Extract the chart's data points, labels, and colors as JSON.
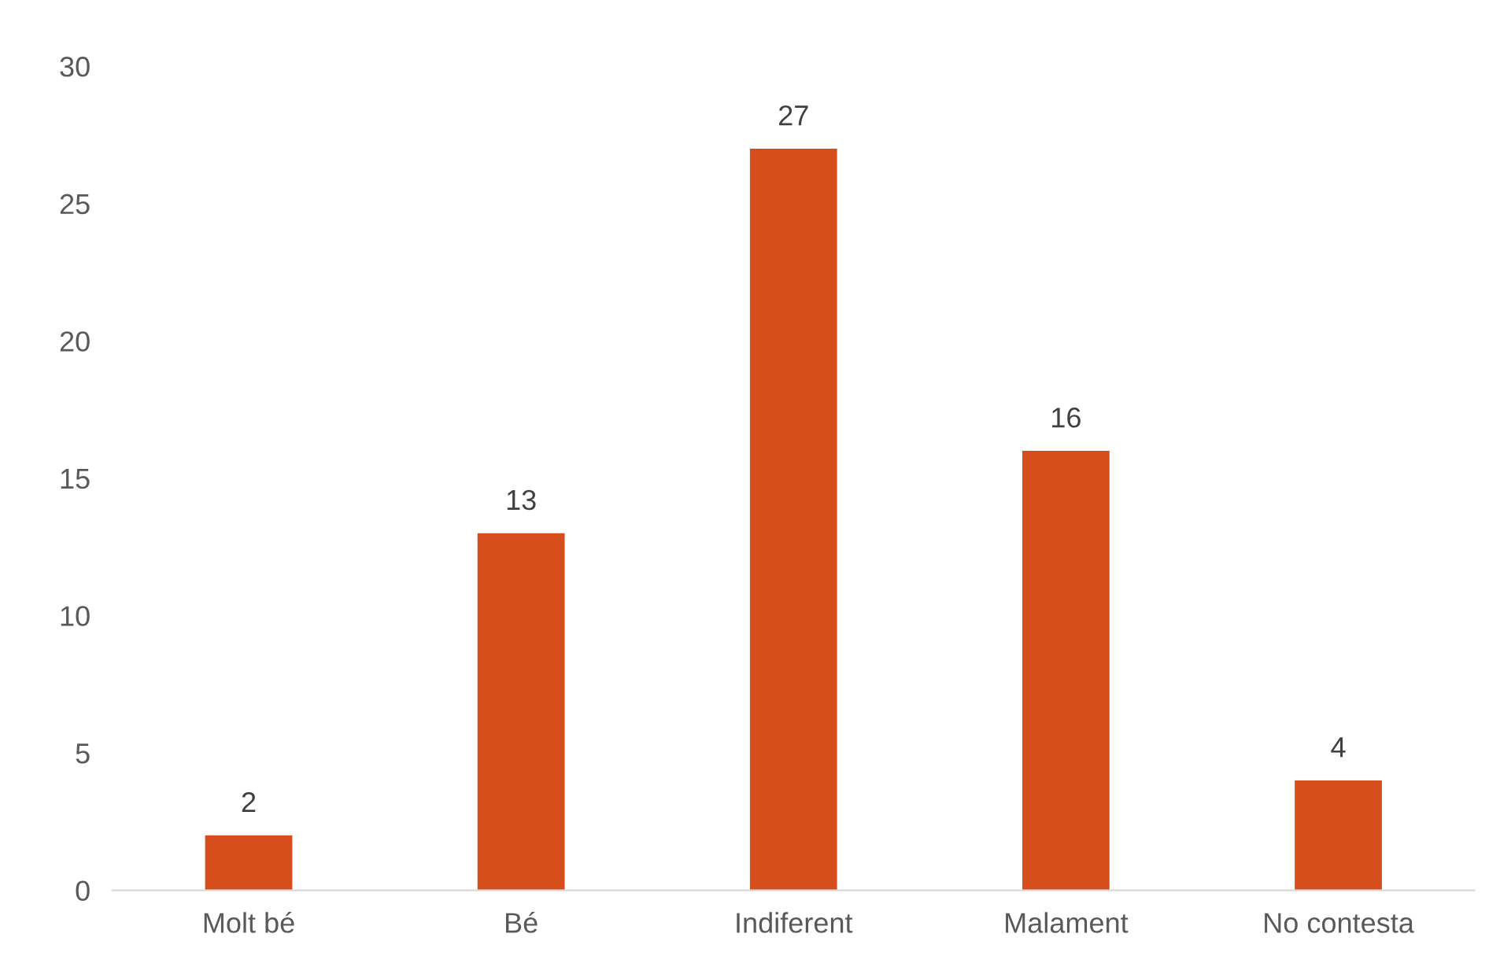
{
  "chart_data": {
    "type": "bar",
    "categories": [
      "Molt bé",
      "Bé",
      "Indiferent",
      "Malament",
      "No contesta"
    ],
    "values": [
      2,
      13,
      27,
      16,
      4
    ],
    "color": "#d54e1c",
    "ylim": [
      0,
      30
    ],
    "yticks": [
      0,
      5,
      10,
      15,
      20,
      25,
      30
    ],
    "grid": false,
    "data_labels": true
  }
}
